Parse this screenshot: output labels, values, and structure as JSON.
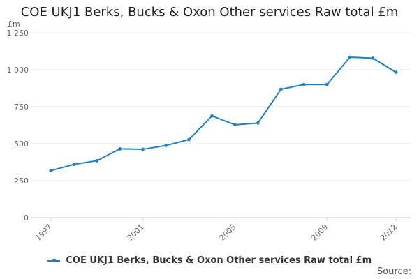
{
  "chart_data": {
    "type": "line",
    "title": "COE UKJ1 Berks, Bucks & Oxon Other services Raw total £m",
    "ylabel": "£m",
    "xlabel": "",
    "x": [
      1997,
      1998,
      1999,
      2000,
      2001,
      2002,
      2003,
      2004,
      2005,
      2006,
      2007,
      2008,
      2009,
      2010,
      2011,
      2012
    ],
    "x_tick_labels": [
      "1997",
      "2001",
      "2005",
      "2009",
      "2012"
    ],
    "x_tick_values": [
      1997,
      2001,
      2005,
      2009,
      2012
    ],
    "y_tick_labels": [
      "0",
      "250",
      "500",
      "750",
      "1 000",
      "1 250"
    ],
    "y_tick_values": [
      0,
      250,
      500,
      750,
      1000,
      1250
    ],
    "ylim": [
      0,
      1250
    ],
    "xlim": [
      1997,
      2012
    ],
    "grid": "horizontal",
    "legend_position": "bottom",
    "series": [
      {
        "name": "COE UKJ1 Berks, Bucks & Oxon Other services Raw total £m",
        "color": "#1f82c0",
        "values": [
          318,
          360,
          385,
          465,
          462,
          488,
          528,
          688,
          628,
          640,
          868,
          900,
          900,
          1085,
          1078,
          983
        ]
      }
    ]
  },
  "footer": {
    "source_label": "Source:"
  }
}
